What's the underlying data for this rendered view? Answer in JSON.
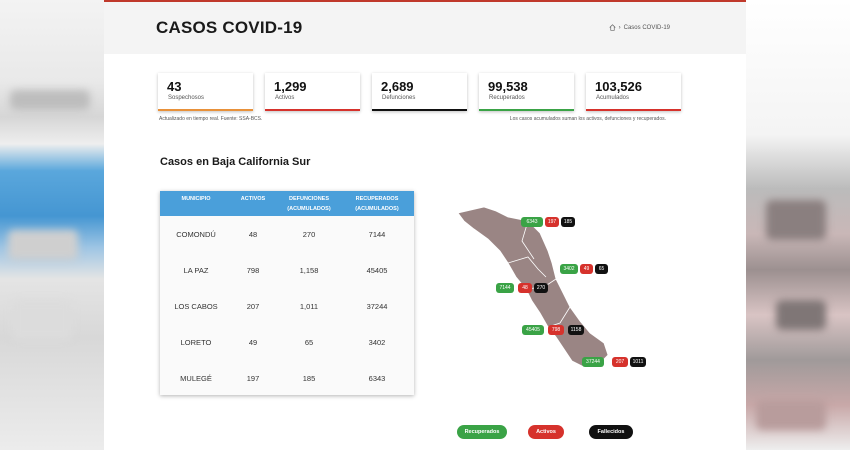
{
  "header": {
    "title": "CASOS COVID-19",
    "breadcrumb": "Casos COVID-19"
  },
  "stats": [
    {
      "value": "43",
      "label": "Sospechosos",
      "color": "#e8913a"
    },
    {
      "value": "1,299",
      "label": "Activos",
      "color": "#d6322c"
    },
    {
      "value": "2,689",
      "label": "Defunciones",
      "color": "#111111"
    },
    {
      "value": "99,538",
      "label": "Recuperados",
      "color": "#3aa346"
    },
    {
      "value": "103,526",
      "label": "Acumulados",
      "color": "#d6322c"
    }
  ],
  "notes": {
    "left": "Actualizado en tiempo real. Fuente: SSA-BCS.",
    "right": "Los casos acumulados suman los activos, defunciones y recuperados."
  },
  "section_title": "Casos en Baja California Sur",
  "table": {
    "headers": [
      "MUNICIPIO",
      "ACTIVOS",
      "DEFUNCIONES",
      "(ACUMULADOS)",
      "RECUPERADOS",
      "(ACUMULADOS)"
    ],
    "rows": [
      [
        "COMONDÚ",
        "48",
        "270",
        "7144"
      ],
      [
        "LA PAZ",
        "798",
        "1,158",
        "45405"
      ],
      [
        "LOS CABOS",
        "207",
        "1,011",
        "37244"
      ],
      [
        "LORETO",
        "49",
        "65",
        "3402"
      ],
      [
        "MULEGÉ",
        "197",
        "185",
        "6343"
      ]
    ]
  },
  "map_labels": {
    "mulege": [
      "6343",
      "197",
      "185"
    ],
    "loreto": [
      "3402",
      "49",
      "65"
    ],
    "comondu": [
      "7144",
      "48",
      "270"
    ],
    "lapaz": [
      "45405",
      "798",
      "1158"
    ],
    "loscabos": [
      "37244",
      "207",
      "1011"
    ]
  },
  "legend": [
    "Recuperados",
    "Activos",
    "Fallecidos"
  ],
  "colors": {
    "accent": "#c0392b",
    "table_header": "#4a9fda",
    "map": "#9a8584"
  }
}
